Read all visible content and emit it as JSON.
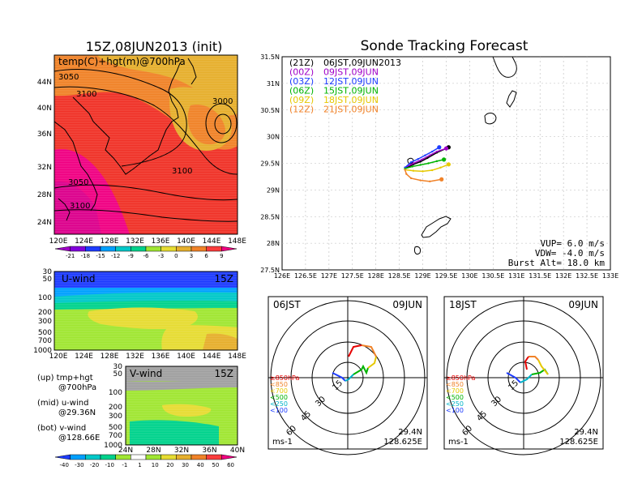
{
  "main_title": "Sonde Tracking Forecast",
  "upper_panel": {
    "title": "15Z,08JUN2013 (init)",
    "label": "temp(C)+hgt(m)@700hPa",
    "lat_labels": [
      "44N",
      "40N",
      "36N",
      "32N",
      "28N",
      "24N"
    ],
    "lon_labels": [
      "120E",
      "124E",
      "128E",
      "132E",
      "136E",
      "140E",
      "144E",
      "148E"
    ],
    "contour_labels": [
      "3050",
      "3100",
      "3000",
      "3100",
      "3050",
      "3100"
    ],
    "colorbar_labels": [
      "-21",
      "-18",
      "-15",
      "-12",
      "-9",
      "-6",
      "-3",
      "0",
      "3",
      "6",
      "9"
    ],
    "colorbar_colors": [
      "#a000c8",
      "#8200dc",
      "#1e3cff",
      "#00a0ff",
      "#00c8c8",
      "#00d28c",
      "#a0e632",
      "#e6dc32",
      "#e6af2d",
      "#f08228",
      "#fa3c3c",
      "#f00082"
    ]
  },
  "u_panel": {
    "label": "U-wind",
    "time": "15Z",
    "pressure_labels": [
      "30",
      "50",
      "100",
      "200",
      "300",
      "500",
      "700",
      "1000"
    ],
    "lon_labels": [
      "120E",
      "124E",
      "128E",
      "132E",
      "136E",
      "140E",
      "144E",
      "148E"
    ]
  },
  "v_panel": {
    "label": "V-wind",
    "time": "15Z",
    "pressure_labels": [
      "30",
      "50",
      "100",
      "200",
      "300",
      "500",
      "700",
      "1000"
    ],
    "lat_labels": [
      "24N",
      "28N",
      "32N",
      "36N",
      "40N"
    ]
  },
  "side_notes": {
    "up_line1": "(up) tmp+hgt",
    "up_line2": "@700hPa",
    "mid_line1": "(mid) u-wind",
    "mid_line2": "@29.36N",
    "bot_line1": "(bot) v-wind",
    "bot_line2": "@128.66E"
  },
  "wind_colorbar": {
    "labels": [
      "-40",
      "-30",
      "-20",
      "-10",
      "-1",
      "1",
      "10",
      "20",
      "30",
      "40",
      "50",
      "60"
    ],
    "colors": [
      "#1e3cff",
      "#00a0ff",
      "#00c8c8",
      "#00d28c",
      "#a0e632",
      "#ffffff",
      "#a0e632",
      "#e6dc32",
      "#e6af2d",
      "#f08228",
      "#fa3c3c",
      "#f00082"
    ]
  },
  "track_map": {
    "lat_labels": [
      "31.5N",
      "31N",
      "30.5N",
      "30N",
      "29.5N",
      "29N",
      "28.5N",
      "28N",
      "27.5N"
    ],
    "lon_labels": [
      "126E",
      "126.5E",
      "127E",
      "127.5E",
      "128E",
      "128.5E",
      "129E",
      "129.5E",
      "130E",
      "130.5E",
      "131E",
      "131.5E",
      "132E",
      "132.5E",
      "133E"
    ],
    "legend": [
      {
        "code": "(21Z)",
        "time": "06JST,09JUN2013",
        "color": "#000000"
      },
      {
        "code": "(00Z)",
        "time": "09JST,09JUN",
        "color": "#a000c8"
      },
      {
        "code": "(03Z)",
        "time": "12JST,09JUN",
        "color": "#1e3cff"
      },
      {
        "code": "(06Z)",
        "time": "15JST,09JUN",
        "color": "#00b400"
      },
      {
        "code": "(09Z)",
        "time": "18JST,09JUN",
        "color": "#e6c800"
      },
      {
        "code": "(12Z)",
        "time": "21JST,09JUN",
        "color": "#f08228"
      }
    ],
    "vup": "VUP= 6.0 m/s",
    "vdw": "VDW= -4.0 m/s",
    "burst": "Burst Alt= 18.0 km"
  },
  "hodo_left": {
    "time": "06JST",
    "date": "09JUN",
    "lat": "29.4N",
    "lon": "128.625E",
    "unit": "ms-1",
    "rings": [
      "15",
      "30",
      "45",
      "60"
    ]
  },
  "hodo_right": {
    "time": "18JST",
    "date": "09JUN",
    "lat": "29.4N",
    "lon": "128.625E",
    "unit": "ms-1",
    "rings": [
      "15",
      "30",
      "45",
      "60"
    ]
  },
  "hodo_legend": [
    "≥850hPa",
    "<850",
    "<700",
    "<500",
    "<250",
    "<100"
  ],
  "hodo_legend_colors": [
    "#e60000",
    "#f08228",
    "#e6c800",
    "#00b400",
    "#00b4c8",
    "#1e3cff"
  ],
  "chart_data": {
    "type": "line",
    "title": "Sonde Tracking Forecast",
    "xlim": [
      126,
      133
    ],
    "ylim": [
      27.5,
      31.5
    ],
    "series": [
      {
        "name": "(21Z) 06JST,09JUN2013",
        "x": [
          128.62,
          128.8,
          128.95,
          129.1,
          129.3,
          129.55
        ],
        "y": [
          29.4,
          29.48,
          29.53,
          29.6,
          29.7,
          29.8
        ]
      },
      {
        "name": "(00Z) 09JST,09JUN",
        "x": [
          128.62,
          128.8,
          128.98,
          129.15,
          129.3,
          129.5
        ],
        "y": [
          29.42,
          29.5,
          29.57,
          29.65,
          29.72,
          29.78
        ]
      },
      {
        "name": "(03Z) 12JST,09JUN",
        "x": [
          128.62,
          128.75,
          128.9,
          129.05,
          129.2,
          129.35
        ],
        "y": [
          29.42,
          29.52,
          29.58,
          29.65,
          29.72,
          29.8
        ]
      },
      {
        "name": "(06Z) 15JST,09JUN",
        "x": [
          128.62,
          128.78,
          128.95,
          129.12,
          129.3,
          129.45
        ],
        "y": [
          29.4,
          29.44,
          29.47,
          29.5,
          29.54,
          29.57
        ]
      },
      {
        "name": "(09Z) 18JST,09JUN",
        "x": [
          128.62,
          128.8,
          129.0,
          129.2,
          129.38,
          129.55
        ],
        "y": [
          29.38,
          29.36,
          29.35,
          29.37,
          29.42,
          29.48
        ]
      },
      {
        "name": "(12Z) 21JST,09JUN",
        "x": [
          128.62,
          128.65,
          128.75,
          128.95,
          129.15,
          129.4
        ],
        "y": [
          29.38,
          29.3,
          29.22,
          29.18,
          29.16,
          29.2
        ]
      }
    ]
  }
}
